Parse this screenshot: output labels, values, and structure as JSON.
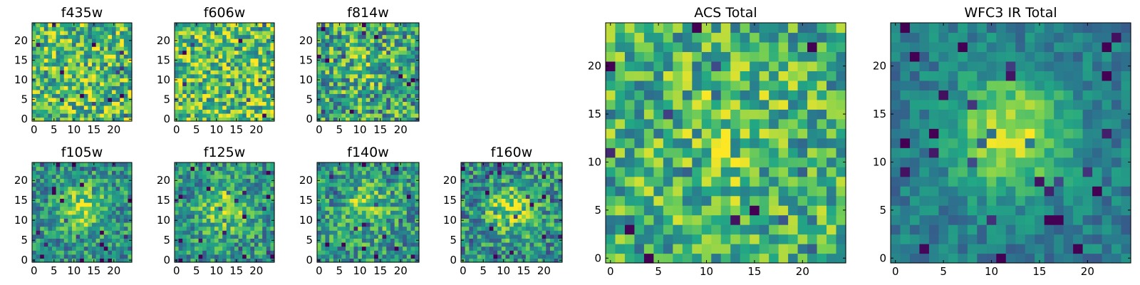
{
  "figure": {
    "colormap": "viridis",
    "colormap_stops": [
      "#440154",
      "#414487",
      "#2a788e",
      "#22a884",
      "#7ad151",
      "#fde725"
    ],
    "frame_color": "#000000",
    "background": "#ffffff"
  },
  "chart_data": [
    {
      "type": "heatmap",
      "panel": "f435w",
      "title": "f435w",
      "grid_size": 25,
      "x_ticks": [
        "0",
        "5",
        "10",
        "15",
        "20"
      ],
      "y_ticks": [
        "0",
        "5",
        "10",
        "15",
        "20"
      ],
      "xlim": [
        -0.5,
        24.5
      ],
      "ylim": [
        -0.5,
        24.5
      ],
      "pattern": "noise",
      "mean_level": 0.7,
      "bump": 0.0,
      "noise": 0.34
    },
    {
      "type": "heatmap",
      "panel": "f606w",
      "title": "f606w",
      "grid_size": 25,
      "x_ticks": [
        "0",
        "5",
        "10",
        "15",
        "20"
      ],
      "y_ticks": [
        "0",
        "5",
        "10",
        "15",
        "20"
      ],
      "xlim": [
        -0.5,
        24.5
      ],
      "ylim": [
        -0.5,
        24.5
      ],
      "pattern": "noise",
      "mean_level": 0.7,
      "bump": 0.0,
      "noise": 0.34
    },
    {
      "type": "heatmap",
      "panel": "f814w",
      "title": "f814w",
      "grid_size": 25,
      "x_ticks": [
        "0",
        "5",
        "10",
        "15",
        "20"
      ],
      "y_ticks": [
        "0",
        "5",
        "10",
        "15",
        "20"
      ],
      "xlim": [
        -0.5,
        24.5
      ],
      "ylim": [
        -0.5,
        24.5
      ],
      "pattern": "noise",
      "mean_level": 0.58,
      "bump": 0.12,
      "noise": 0.36
    },
    {
      "type": "heatmap",
      "panel": "f105w",
      "title": "f105w",
      "grid_size": 25,
      "x_ticks": [
        "0",
        "5",
        "10",
        "15",
        "20"
      ],
      "y_ticks": [
        "0",
        "5",
        "10",
        "15",
        "20"
      ],
      "xlim": [
        -0.5,
        24.5
      ],
      "ylim": [
        -0.5,
        24.5
      ],
      "pattern": "source",
      "mean_level": 0.5,
      "bump": 0.35,
      "noise": 0.26
    },
    {
      "type": "heatmap",
      "panel": "f125w",
      "title": "f125w",
      "grid_size": 25,
      "x_ticks": [
        "0",
        "5",
        "10",
        "15",
        "20"
      ],
      "y_ticks": [
        "0",
        "5",
        "10",
        "15",
        "20"
      ],
      "xlim": [
        -0.5,
        24.5
      ],
      "ylim": [
        -0.5,
        24.5
      ],
      "pattern": "source",
      "mean_level": 0.52,
      "bump": 0.33,
      "noise": 0.26
    },
    {
      "type": "heatmap",
      "panel": "f140w",
      "title": "f140w",
      "grid_size": 25,
      "x_ticks": [
        "0",
        "5",
        "10",
        "15",
        "20"
      ],
      "y_ticks": [
        "0",
        "5",
        "10",
        "15",
        "20"
      ],
      "xlim": [
        -0.5,
        24.5
      ],
      "ylim": [
        -0.5,
        24.5
      ],
      "pattern": "source",
      "mean_level": 0.52,
      "bump": 0.3,
      "noise": 0.28
    },
    {
      "type": "heatmap",
      "panel": "f160w",
      "title": "f160w",
      "grid_size": 25,
      "x_ticks": [
        "0",
        "5",
        "10",
        "15",
        "20"
      ],
      "y_ticks": [
        "0",
        "5",
        "10",
        "15",
        "20"
      ],
      "xlim": [
        -0.5,
        24.5
      ],
      "ylim": [
        -0.5,
        24.5
      ],
      "pattern": "source",
      "mean_level": 0.5,
      "bump": 0.36,
      "noise": 0.3
    },
    {
      "type": "heatmap",
      "panel": "acs_total",
      "title": "ACS Total",
      "grid_size": 25,
      "x_ticks": [
        "0",
        "5",
        "10",
        "15",
        "20"
      ],
      "y_ticks": [
        "0",
        "5",
        "10",
        "15",
        "20"
      ],
      "xlim": [
        -0.5,
        24.5
      ],
      "ylim": [
        -0.5,
        24.5
      ],
      "pattern": "noise",
      "mean_level": 0.64,
      "bump": 0.1,
      "noise": 0.3
    },
    {
      "type": "heatmap",
      "panel": "wfc3_ir_total",
      "title": "WFC3 IR Total",
      "grid_size": 25,
      "x_ticks": [
        "0",
        "5",
        "10",
        "15",
        "20"
      ],
      "y_ticks": [
        "0",
        "5",
        "10",
        "15",
        "20"
      ],
      "xlim": [
        -0.5,
        24.5
      ],
      "ylim": [
        -0.5,
        24.5
      ],
      "pattern": "source",
      "mean_level": 0.42,
      "bump": 0.5,
      "noise": 0.14
    }
  ]
}
